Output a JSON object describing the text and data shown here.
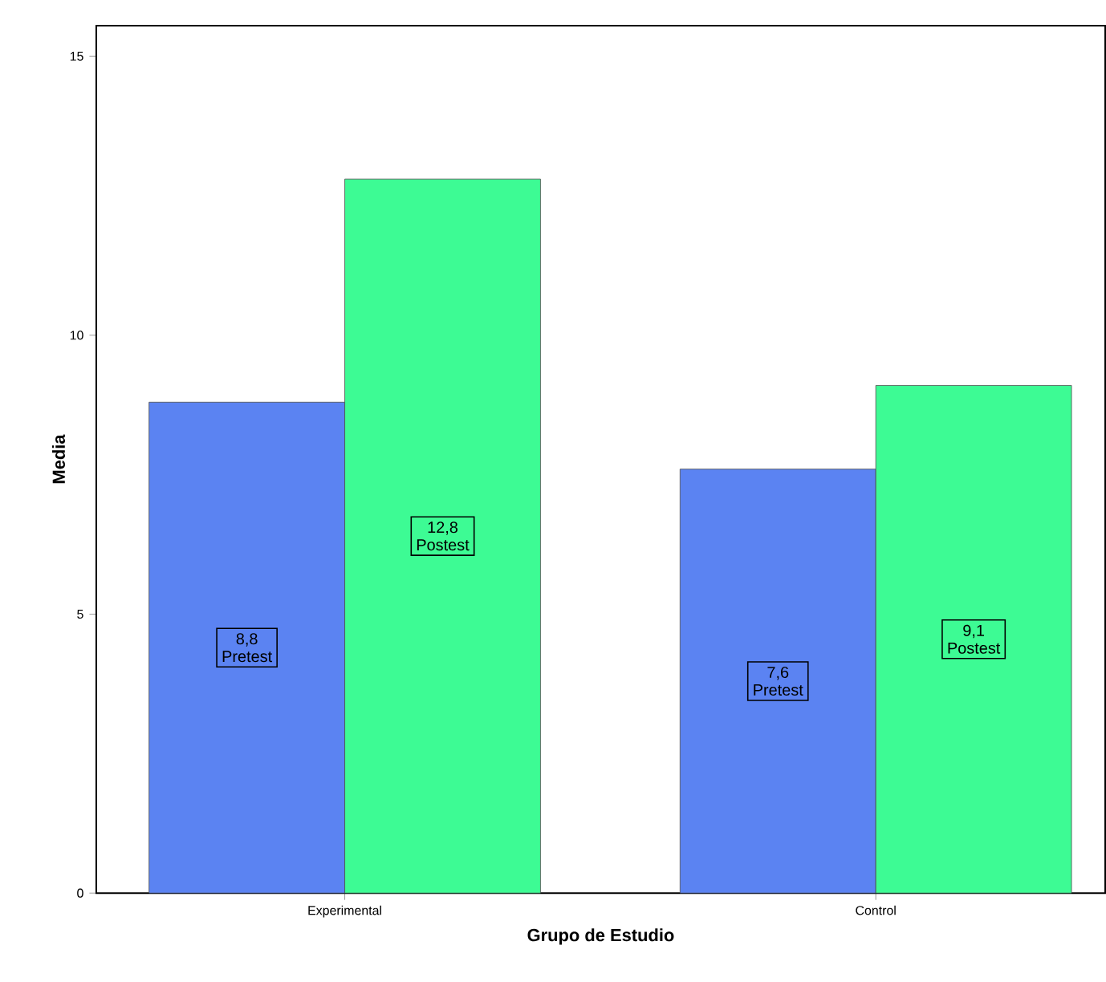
{
  "chart_data": {
    "type": "bar",
    "xlabel": "Grupo de Estudio",
    "ylabel": "Media",
    "categories": [
      "Experimental",
      "Control"
    ],
    "series": [
      {
        "name": "Pretest",
        "color": "#5b83f2",
        "values": [
          8.8,
          7.6
        ],
        "value_labels": [
          "8,8",
          "7,6"
        ]
      },
      {
        "name": "Postest",
        "color": "#3dfb94",
        "values": [
          12.8,
          9.1
        ],
        "value_labels": [
          "12,8",
          "9,1"
        ]
      }
    ],
    "ylim": [
      0,
      15.55
    ],
    "yticks": [
      0,
      5,
      10,
      15
    ]
  }
}
